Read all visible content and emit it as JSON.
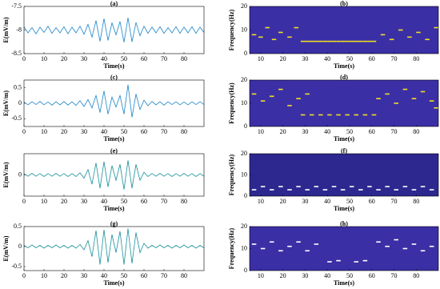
{
  "chart_data": [
    {
      "type": "line",
      "title": "(a)",
      "xlabel": "Time(s)",
      "ylabel": "E(mV/m)",
      "color": "#1a84c8",
      "x": [
        0,
        2,
        4,
        6,
        8,
        10,
        12,
        14,
        16,
        18,
        20,
        22,
        24,
        26,
        28,
        30,
        32,
        34,
        36,
        38,
        40,
        42,
        44,
        46,
        48,
        50,
        52,
        54,
        56,
        58,
        60,
        62,
        64,
        66,
        68,
        70,
        72,
        74,
        76,
        78,
        80,
        82,
        84,
        86,
        88,
        90
      ],
      "values": [
        -7.93,
        -8.06,
        -7.95,
        -8.08,
        -7.94,
        -8.05,
        -7.92,
        -8.07,
        -7.95,
        -8.06,
        -7.93,
        -8.08,
        -7.94,
        -8.06,
        -7.92,
        -8.09,
        -7.88,
        -8.15,
        -7.8,
        -8.24,
        -7.76,
        -8.22,
        -7.85,
        -8.1,
        -7.82,
        -8.26,
        -7.74,
        -8.25,
        -7.84,
        -8.12,
        -7.92,
        -8.07,
        -7.94,
        -8.06,
        -7.93,
        -8.07,
        -7.95,
        -8.06,
        -7.93,
        -8.07,
        -7.94,
        -8.06,
        -7.93,
        -8.07,
        -7.94,
        -8.05
      ],
      "xlim": [
        0,
        90
      ],
      "xticks": [
        0,
        10,
        20,
        30,
        40,
        50,
        60,
        70,
        80
      ],
      "ylim": [
        -8.5,
        -7.5
      ],
      "yticks": [
        -8.5,
        -8,
        -7.5
      ]
    },
    {
      "type": "scatter",
      "title": "(b)",
      "xlabel": "Time(s)",
      "ylabel": "Frequency(Hz)",
      "color": "#f0e020",
      "plot_background": "#3b2fa6",
      "x": [
        28,
        30,
        32,
        34,
        36,
        38,
        40,
        42,
        44,
        46,
        48,
        50,
        52,
        54,
        56,
        58,
        60,
        6,
        9,
        12,
        15,
        18,
        22,
        25,
        64,
        68,
        72,
        76,
        80,
        84,
        88
      ],
      "values": [
        5.2,
        5.2,
        5.2,
        5.2,
        5.2,
        5.2,
        5.2,
        5.2,
        5.2,
        5.2,
        5.2,
        5.2,
        5.2,
        5.2,
        5.2,
        5.2,
        5.2,
        8,
        7,
        11,
        6,
        9,
        7,
        11,
        8,
        6,
        10,
        7,
        9,
        6,
        11
      ],
      "xlim": [
        5,
        90
      ],
      "xticks": [
        10,
        20,
        30,
        40,
        50,
        60,
        70,
        80
      ],
      "ylim": [
        0,
        20
      ],
      "yticks": [
        0,
        10,
        20
      ]
    },
    {
      "type": "line",
      "title": "(c)",
      "xlabel": "Time(s)",
      "ylabel": "E(mV/m)",
      "color": "#1a84c8",
      "x": [
        0,
        2,
        4,
        6,
        8,
        10,
        12,
        14,
        16,
        18,
        20,
        22,
        24,
        26,
        28,
        30,
        32,
        34,
        36,
        38,
        40,
        42,
        44,
        46,
        48,
        50,
        52,
        54,
        56,
        58,
        60,
        62,
        64,
        66,
        68,
        70,
        72,
        74,
        76,
        78,
        80,
        82,
        84,
        86,
        88,
        90
      ],
      "values": [
        0.04,
        -0.05,
        0.05,
        -0.04,
        0.06,
        -0.05,
        0.04,
        -0.06,
        0.05,
        -0.05,
        0.06,
        -0.06,
        0.05,
        -0.07,
        0.08,
        -0.1,
        0.12,
        -0.15,
        0.25,
        -0.3,
        0.4,
        -0.35,
        0.2,
        -0.12,
        0.25,
        -0.35,
        0.6,
        -0.45,
        0.3,
        -0.2,
        0.1,
        -0.08,
        0.06,
        -0.05,
        0.05,
        -0.06,
        0.05,
        -0.04,
        0.05,
        -0.05,
        0.04,
        -0.05,
        0.05,
        -0.04,
        0.05,
        -0.04
      ],
      "xlim": [
        0,
        90
      ],
      "xticks": [
        0,
        10,
        20,
        30,
        40,
        50,
        60,
        70,
        80
      ],
      "ylim": [
        -0.75,
        0.75
      ],
      "yticks": [
        -0.5,
        0,
        0.5
      ]
    },
    {
      "type": "scatter",
      "title": "(d)",
      "xlabel": "Time(s)",
      "ylabel": "Frequency(Hz)",
      "color": "#f0e020",
      "plot_background": "#3b2fa6",
      "x": [
        28,
        32,
        36,
        40,
        44,
        48,
        52,
        56,
        60,
        6,
        10,
        14,
        18,
        22,
        26,
        30,
        62,
        66,
        70,
        74,
        78,
        82,
        86,
        88
      ],
      "values": [
        5,
        5,
        5,
        5,
        5,
        5,
        5,
        5,
        5,
        14,
        11,
        13,
        16,
        9,
        12,
        14,
        12,
        14,
        10,
        16,
        12,
        15,
        11,
        8
      ],
      "xlim": [
        5,
        90
      ],
      "xticks": [
        10,
        20,
        30,
        40,
        50,
        60,
        70,
        80
      ],
      "ylim": [
        0,
        20
      ],
      "yticks": [
        0,
        10,
        20
      ]
    },
    {
      "type": "line",
      "title": "(e)",
      "xlabel": "Time(s)",
      "ylabel": "E(mV/m)",
      "color": "#17909a",
      "x": [
        0,
        2,
        4,
        6,
        8,
        10,
        12,
        14,
        16,
        18,
        20,
        22,
        24,
        26,
        28,
        30,
        32,
        34,
        36,
        38,
        40,
        42,
        44,
        46,
        48,
        50,
        52,
        54,
        56,
        58,
        60,
        62,
        64,
        66,
        68,
        70,
        72,
        74,
        76,
        78,
        80,
        82,
        84,
        86,
        88,
        90
      ],
      "values": [
        0.05,
        -0.05,
        0.06,
        -0.05,
        0.05,
        -0.06,
        0.05,
        -0.05,
        0.06,
        -0.05,
        0.05,
        -0.06,
        0.05,
        -0.06,
        0.08,
        -0.12,
        0.2,
        -0.35,
        0.45,
        -0.5,
        0.5,
        -0.45,
        0.35,
        -0.2,
        0.4,
        -0.55,
        0.55,
        -0.5,
        0.4,
        -0.2,
        0.1,
        -0.06,
        0.05,
        -0.05,
        0.06,
        -0.05,
        0.05,
        -0.06,
        0.05,
        -0.05,
        0.06,
        -0.05,
        0.05,
        -0.06,
        0.05,
        -0.05
      ],
      "xlim": [
        0,
        90
      ],
      "xticks": [
        0,
        10,
        20,
        30,
        40,
        50,
        60,
        70,
        80
      ],
      "ylim": [
        -0.8,
        0.8
      ],
      "yticks": [
        0
      ]
    },
    {
      "type": "scatter",
      "title": "(f)",
      "xlabel": "Time(s)",
      "ylabel": "Frequency(Hz)",
      "color": "#ffffff",
      "plot_background": "#2c2890",
      "x": [
        6,
        10,
        14,
        18,
        22,
        26,
        30,
        34,
        38,
        42,
        46,
        50,
        54,
        58,
        62,
        66,
        70,
        74,
        78,
        82,
        86
      ],
      "values": [
        3,
        4.5,
        3,
        4.5,
        3,
        4.5,
        3,
        4.5,
        3,
        4.5,
        3,
        4.5,
        3,
        4.5,
        3,
        4.5,
        3,
        4.5,
        3,
        4.5,
        3
      ],
      "xlim": [
        5,
        90
      ],
      "xticks": [
        10,
        20,
        30,
        40,
        50,
        60,
        70,
        80
      ],
      "ylim": [
        0,
        20
      ],
      "yticks": [
        0,
        10,
        20
      ]
    },
    {
      "type": "line",
      "title": "(g)",
      "xlabel": "Time(s)",
      "ylabel": "E(mV/m)",
      "color": "#17909a",
      "x": [
        0,
        2,
        4,
        6,
        8,
        10,
        12,
        14,
        16,
        18,
        20,
        22,
        24,
        26,
        28,
        30,
        32,
        34,
        36,
        38,
        40,
        42,
        44,
        46,
        48,
        50,
        52,
        54,
        56,
        58,
        60,
        62,
        64,
        66,
        68,
        70,
        72,
        74,
        76,
        78,
        80,
        82,
        84,
        86,
        88,
        90
      ],
      "values": [
        0.03,
        -0.03,
        0.04,
        -0.03,
        0.03,
        -0.04,
        0.03,
        -0.03,
        0.04,
        -0.03,
        0.03,
        -0.04,
        0.03,
        -0.04,
        0.05,
        -0.08,
        0.15,
        -0.25,
        0.4,
        -0.45,
        0.42,
        -0.4,
        0.3,
        -0.15,
        0.38,
        -0.45,
        0.45,
        -0.42,
        0.35,
        -0.15,
        0.08,
        -0.04,
        0.03,
        -0.03,
        0.04,
        -0.03,
        0.03,
        -0.04,
        0.03,
        -0.03,
        0.04,
        -0.03,
        0.03,
        -0.04,
        0.03,
        -0.03
      ],
      "xlim": [
        0,
        90
      ],
      "xticks": [
        0,
        10,
        20,
        30,
        40,
        50,
        60,
        70,
        80
      ],
      "ylim": [
        -0.6,
        0.5
      ],
      "yticks": [
        -0.5,
        0,
        0.5
      ]
    },
    {
      "type": "scatter",
      "title": "(h)",
      "xlabel": "Time(s)",
      "ylabel": "Frequency(Hz)",
      "color": "#ffffff",
      "plot_background": "#3b2fa6",
      "x": [
        6,
        10,
        14,
        18,
        22,
        26,
        30,
        34,
        40,
        44,
        52,
        56,
        62,
        66,
        70,
        74,
        78,
        82,
        86
      ],
      "values": [
        12,
        10,
        13,
        9,
        11,
        13,
        9,
        12,
        4,
        4.5,
        4,
        4.5,
        13,
        11,
        14,
        10,
        12,
        9,
        11
      ],
      "xlim": [
        5,
        90
      ],
      "xticks": [
        10,
        20,
        30,
        40,
        50,
        60,
        70,
        80
      ],
      "ylim": [
        0,
        20
      ],
      "yticks": [
        0,
        10,
        20
      ]
    }
  ]
}
